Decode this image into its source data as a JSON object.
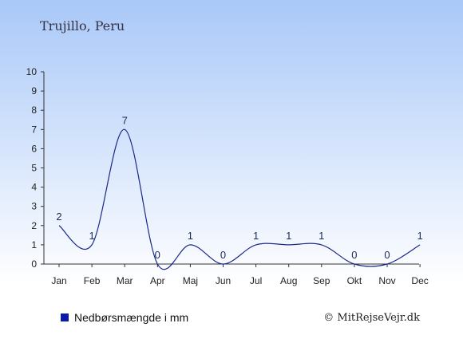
{
  "title": "Trujillo, Peru",
  "colors": {
    "background_top": "#a9c8f8",
    "background_bottom": "#ffffff",
    "line": "#1a2a8a",
    "legend_swatch": "#0a1aa8"
  },
  "legend": {
    "label": "Nedbørsmængde i mm"
  },
  "credit": "© MitRejseVejr.dk",
  "chart_data": {
    "type": "line",
    "title": "Trujillo, Peru",
    "categories": [
      "Jan",
      "Feb",
      "Mar",
      "Apr",
      "Maj",
      "Jun",
      "Jul",
      "Aug",
      "Sep",
      "Okt",
      "Nov",
      "Dec"
    ],
    "series": [
      {
        "name": "Nedbørsmængde i mm",
        "values": [
          2,
          1,
          7,
          0,
          1,
          0,
          1,
          1,
          1,
          0,
          0,
          1
        ]
      }
    ],
    "data_labels": [
      "2",
      "1",
      "7",
      "0",
      "1",
      "0",
      "1",
      "1",
      "1",
      "0",
      "0",
      "1"
    ],
    "y_ticks": [
      "0",
      "1",
      "2",
      "3",
      "4",
      "5",
      "6",
      "7",
      "8",
      "9",
      "10"
    ],
    "ylim": [
      0,
      10
    ],
    "grid": false,
    "smooth": true,
    "legend_position": "bottom-left"
  }
}
